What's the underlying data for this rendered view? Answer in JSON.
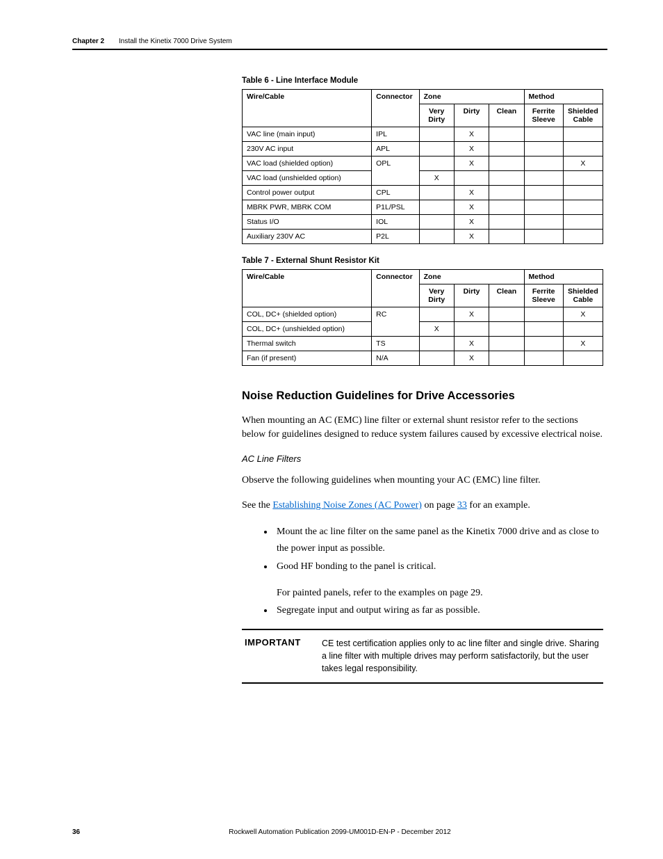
{
  "header": {
    "chapter": "Chapter 2",
    "title": "Install the Kinetix 7000 Drive System"
  },
  "table6": {
    "caption": "Table 6 - Line Interface Module",
    "headers": {
      "wire": "Wire/Cable",
      "connector": "Connector",
      "zone": "Zone",
      "method": "Method",
      "very_dirty": "Very Dirty",
      "dirty": "Dirty",
      "clean": "Clean",
      "ferrite": "Ferrite Sleeve",
      "shielded": "Shielded Cable"
    },
    "rows": [
      {
        "wire": "VAC line (main input)",
        "conn": "IPL",
        "vd": "",
        "d": "X",
        "c": "",
        "f": "",
        "s": ""
      },
      {
        "wire": "230V AC input",
        "conn": "APL",
        "vd": "",
        "d": "X",
        "c": "",
        "f": "",
        "s": ""
      },
      {
        "wire": "VAC load (shielded option)",
        "conn": "OPL",
        "vd": "",
        "d": "X",
        "c": "",
        "f": "",
        "s": "X"
      },
      {
        "wire": "VAC load (unshielded option)",
        "conn": "",
        "vd": "X",
        "d": "",
        "c": "",
        "f": "",
        "s": ""
      },
      {
        "wire": "Control power output",
        "conn": "CPL",
        "vd": "",
        "d": "X",
        "c": "",
        "f": "",
        "s": ""
      },
      {
        "wire": "MBRK PWR, MBRK COM",
        "conn": "P1L/PSL",
        "vd": "",
        "d": "X",
        "c": "",
        "f": "",
        "s": ""
      },
      {
        "wire": "Status I/O",
        "conn": "IOL",
        "vd": "",
        "d": "X",
        "c": "",
        "f": "",
        "s": ""
      },
      {
        "wire": "Auxiliary 230V AC",
        "conn": "P2L",
        "vd": "",
        "d": "X",
        "c": "",
        "f": "",
        "s": ""
      }
    ]
  },
  "table7": {
    "caption": "Table 7 - External Shunt Resistor Kit",
    "headers": {
      "wire": "Wire/Cable",
      "connector": "Connector",
      "zone": "Zone",
      "method": "Method",
      "very_dirty": "Very Dirty",
      "dirty": "Dirty",
      "clean": "Clean",
      "ferrite": "Ferrite Sleeve",
      "shielded": "Shielded Cable"
    },
    "rows": [
      {
        "wire": "COL, DC+ (shielded option)",
        "conn": "RC",
        "vd": "",
        "d": "X",
        "c": "",
        "f": "",
        "s": "X"
      },
      {
        "wire": "COL, DC+ (unshielded option)",
        "conn": "",
        "vd": "X",
        "d": "",
        "c": "",
        "f": "",
        "s": ""
      },
      {
        "wire": "Thermal switch",
        "conn": "TS",
        "vd": "",
        "d": "X",
        "c": "",
        "f": "",
        "s": "X"
      },
      {
        "wire": "Fan (if present)",
        "conn": "N/A",
        "vd": "",
        "d": "X",
        "c": "",
        "f": "",
        "s": ""
      }
    ]
  },
  "section": {
    "heading": "Noise Reduction Guidelines for Drive Accessories",
    "intro": "When mounting an AC (EMC) line filter or external shunt resistor refer to the sections below for guidelines designed to reduce system failures caused by excessive electrical noise.",
    "sub": "AC Line Filters",
    "p1": "Observe the following guidelines when mounting your AC (EMC) line filter.",
    "p2_pre": "See the ",
    "p2_link": "Establishing Noise Zones (AC Power)",
    "p2_mid": " on page ",
    "p2_page": "33",
    "p2_post": " for an example.",
    "bullets": [
      "Mount the ac line filter on the same panel as the Kinetix 7000 drive and as close to the power input as possible.",
      "Good HF bonding to the panel is critical.",
      "Segregate input and output wiring as far as possible."
    ],
    "bullet2_sub": "For painted panels, refer to the examples on page 29.",
    "important_label": "IMPORTANT",
    "important_text": "CE test certification applies only to ac line filter and single drive. Sharing a line filter with multiple drives may perform satisfactorily, but the user takes legal responsibility."
  },
  "footer": {
    "page": "36",
    "pub": "Rockwell Automation Publication 2099-UM001D-EN-P - December 2012"
  }
}
